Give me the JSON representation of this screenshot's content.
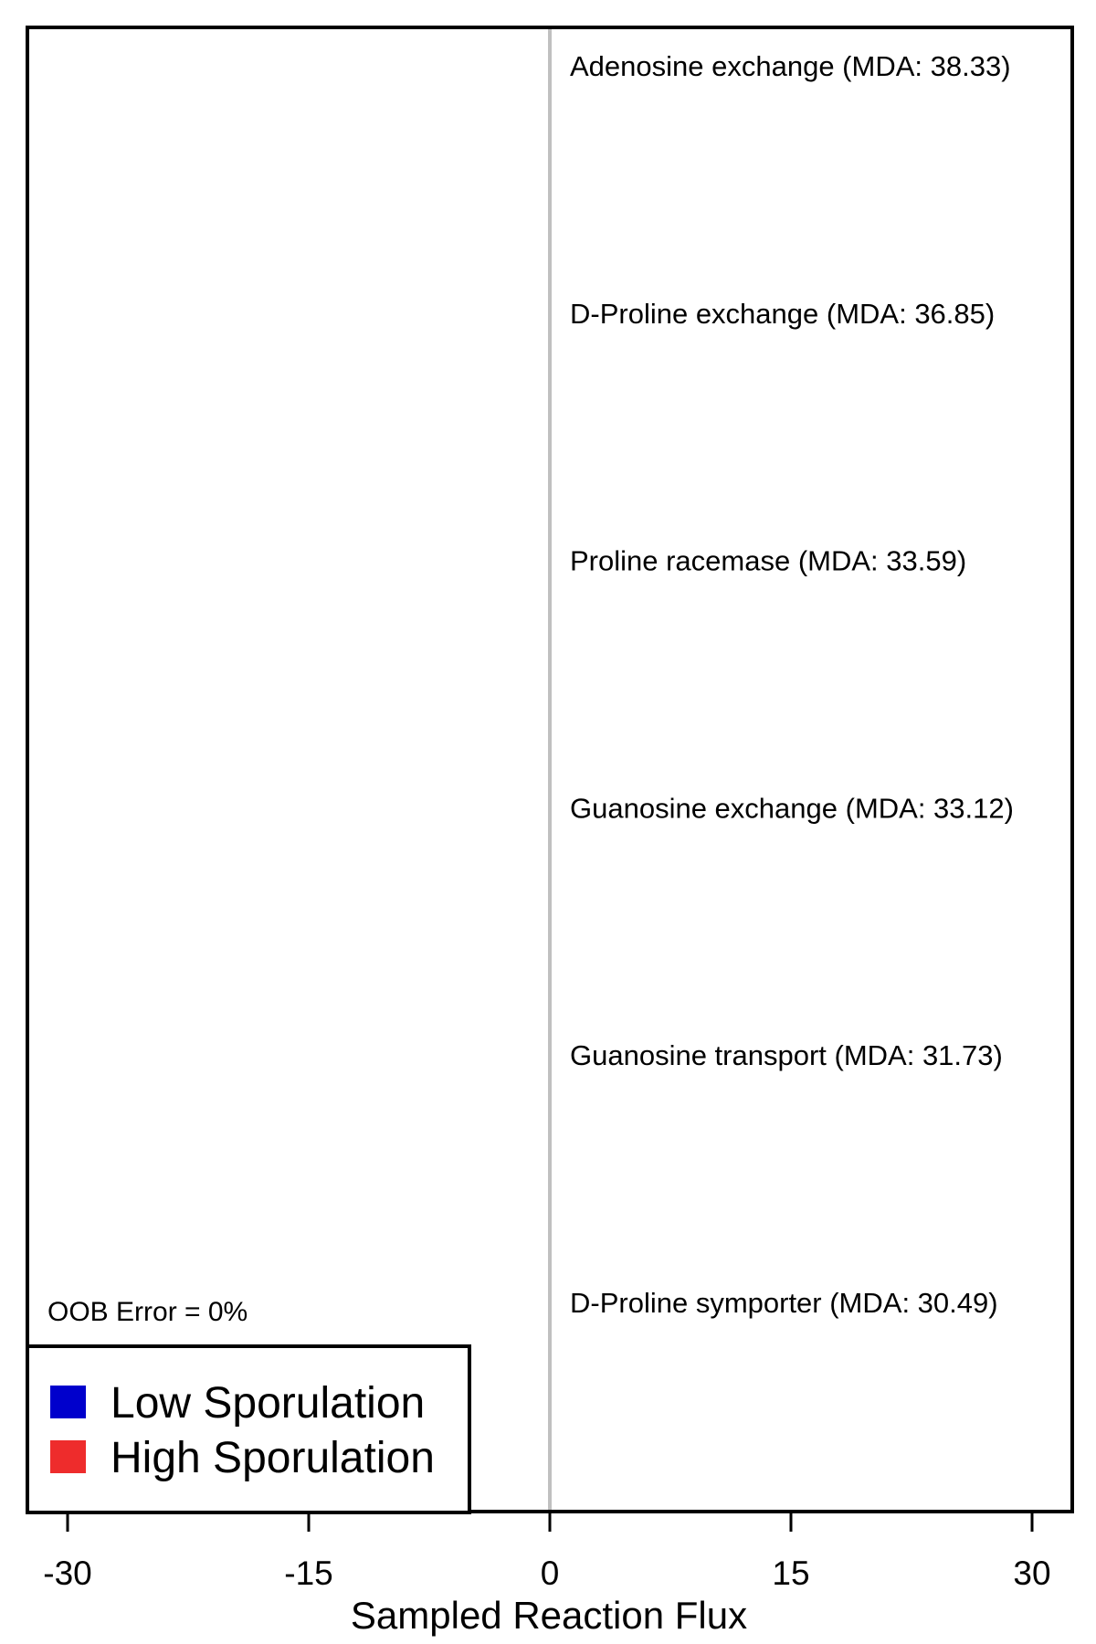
{
  "chart_data": {
    "type": "bar",
    "orientation": "horizontal",
    "categories": [
      "Adenosine exchange (MDA: 38.33)",
      "D-Proline exchange (MDA: 36.85)",
      "Proline racemase (MDA: 33.59)",
      "Guanosine exchange (MDA: 33.12)",
      "Guanosine transport (MDA: 31.73)",
      "D-Proline symporter (MDA: 30.49)"
    ],
    "series": [
      {
        "name": "Low Sporulation",
        "color": "#0000cc",
        "values": [
          0,
          0,
          0,
          0,
          0,
          0
        ]
      },
      {
        "name": "High Sporulation",
        "color": "#ee2c2c",
        "values": [
          0,
          0,
          0,
          0,
          0,
          0
        ]
      }
    ],
    "xlabel": "Sampled Reaction Flux",
    "xlim": [
      -32.5,
      32.5
    ],
    "xticks": [
      -30,
      -15,
      0,
      15,
      30
    ],
    "xtick_labels": [
      "-30",
      "-15",
      "0",
      "15",
      "30"
    ],
    "zero_line_color": "#c0c0c0",
    "annotation": "OOB Error = 0%",
    "legend": {
      "placement": "bottom-left",
      "entries": [
        {
          "label": "Low Sporulation",
          "color": "#0000cc"
        },
        {
          "label": "High Sporulation",
          "color": "#ee2c2c"
        }
      ]
    }
  }
}
